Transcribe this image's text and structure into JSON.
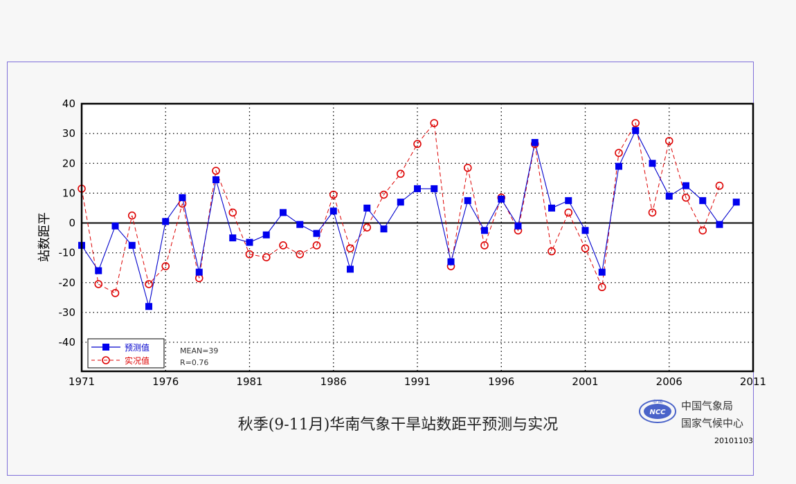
{
  "chart_data": {
    "type": "line",
    "title": "秋季(9-11月)华南气象干旱站数距平预测与实况",
    "xlabel": "",
    "ylabel": "站数距平",
    "xlim": [
      1971,
      2011
    ],
    "ylim": [
      -50,
      40
    ],
    "grid": true,
    "legend_position": "bottom-left",
    "x_ticks": [
      "1971",
      "1976",
      "1981",
      "1986",
      "1991",
      "1996",
      "2001",
      "2006",
      "2011"
    ],
    "y_ticks": [
      "40",
      "30",
      "20",
      "10",
      "0",
      "-10",
      "-20",
      "-30",
      "-40"
    ],
    "x": [
      1971,
      1972,
      1973,
      1974,
      1975,
      1976,
      1977,
      1978,
      1979,
      1980,
      1981,
      1982,
      1983,
      1984,
      1985,
      1986,
      1987,
      1988,
      1989,
      1990,
      1991,
      1992,
      1993,
      1994,
      1995,
      1996,
      1997,
      1998,
      1999,
      2000,
      2001,
      2002,
      2003,
      2004,
      2005,
      2006,
      2007,
      2008,
      2009,
      2010
    ],
    "series": [
      {
        "name": "预测值",
        "color": "#0000cc",
        "marker": "filled-square",
        "line": "solid",
        "values": [
          -7.5,
          -16,
          -1,
          -7.5,
          -28,
          0.5,
          8.5,
          -16.5,
          14.5,
          -5,
          -6.5,
          -4,
          3.5,
          -0.5,
          -3.5,
          4,
          -15.5,
          5,
          -2,
          7,
          11.5,
          11.5,
          -13,
          7.5,
          -2.5,
          8,
          -1,
          27,
          5,
          7.5,
          -2.5,
          -16.5,
          19,
          31,
          20,
          9,
          12.5,
          7.5,
          -0.5,
          7
        ]
      },
      {
        "name": "实况值",
        "color": "#dd0000",
        "marker": "open-circle",
        "line": "dashed",
        "values": [
          11.5,
          -20.5,
          -23.5,
          2.5,
          -20.5,
          -14.5,
          6.5,
          -18.5,
          17.5,
          3.5,
          -10.5,
          -11.5,
          -7.5,
          -10.5,
          -7.5,
          9.5,
          -8.5,
          -1.5,
          9.5,
          16.5,
          26.5,
          33.5,
          -14.5,
          18.5,
          -7.5,
          8.5,
          -2.5,
          26.5,
          -9.5,
          3.5,
          -8.5,
          -21.5,
          23.5,
          33.5,
          3.5,
          27.5,
          8.5,
          -2.5,
          12.5,
          null
        ]
      }
    ],
    "annotations": [
      "MEAN=39",
      "R=0.76"
    ]
  },
  "footer": {
    "org_line1": "中国气象局",
    "org_line2": "国家气候中心",
    "date": "20101103",
    "logo_text": "NCC",
    "logo_top_text": "中 国"
  }
}
